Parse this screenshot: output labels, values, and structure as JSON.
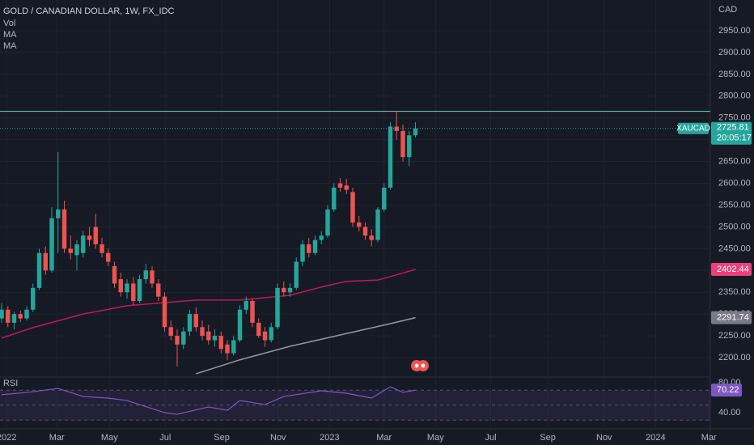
{
  "chart_data": {
    "type": "candlestick",
    "title": "GOLD / CANADIAN DOLLAR, 1W, FX_IDC",
    "indicators": [
      "Vol",
      "MA",
      "MA"
    ],
    "currency": "CAD",
    "symbol_tag": "XAUCAD",
    "countdown": "20:05:17",
    "up_color": "#26a69a",
    "down_color": "#ef5350",
    "grid": true,
    "horizontal_line": 2765,
    "ylim": [
      2155.5,
      3020.5
    ],
    "yticks": [
      {
        "value": 2200,
        "label": "2200.00"
      },
      {
        "value": 2250,
        "label": "2250.00"
      },
      {
        "value": 2300,
        "label": "2300.00"
      },
      {
        "value": 2350,
        "label": "2350.00"
      },
      {
        "value": 2400,
        "label": "2400.00"
      },
      {
        "value": 2450,
        "label": "2450.00"
      },
      {
        "value": 2500,
        "label": "2500.00"
      },
      {
        "value": 2550,
        "label": "2550.00"
      },
      {
        "value": 2600,
        "label": "2600.00"
      },
      {
        "value": 2650,
        "label": "2650.00"
      },
      {
        "value": 2700,
        "label": "2700.00"
      },
      {
        "value": 2750,
        "label": "2750.00"
      },
      {
        "value": 2800,
        "label": "2800.00"
      },
      {
        "value": 2850,
        "label": "2850.00"
      },
      {
        "value": 2900,
        "label": "2900.00"
      },
      {
        "value": 2950,
        "label": "2950.00"
      }
    ],
    "xlim": [
      -0.26,
      113.03
    ],
    "xticks": [
      {
        "value": 0.8,
        "label": "2022"
      },
      {
        "value": 8.8,
        "label": "Mar"
      },
      {
        "value": 17.2,
        "label": "May"
      },
      {
        "value": 26.1,
        "label": "Jul"
      },
      {
        "value": 35.1,
        "label": "Sep"
      },
      {
        "value": 44.1,
        "label": "Nov"
      },
      {
        "value": 52.3,
        "label": "2023"
      },
      {
        "value": 61,
        "label": "Mar"
      },
      {
        "value": 69.2,
        "label": "May"
      },
      {
        "value": 78,
        "label": "Jul"
      },
      {
        "value": 87.1,
        "label": "Sep"
      },
      {
        "value": 96.1,
        "label": "Nov"
      },
      {
        "value": 104.3,
        "label": "2024"
      },
      {
        "value": 112.8,
        "label": "Mar"
      }
    ],
    "candles": [
      [
        2290,
        2325,
        2280,
        2310
      ],
      [
        2310,
        2318,
        2270,
        2280
      ],
      [
        2280,
        2305,
        2265,
        2300
      ],
      [
        2300,
        2308,
        2282,
        2290
      ],
      [
        2290,
        2318,
        2285,
        2310
      ],
      [
        2310,
        2370,
        2305,
        2360
      ],
      [
        2360,
        2450,
        2355,
        2440
      ],
      [
        2440,
        2455,
        2390,
        2400
      ],
      [
        2400,
        2545,
        2395,
        2520
      ],
      [
        2520,
        2672,
        2440,
        2540
      ],
      [
        2540,
        2560,
        2440,
        2450
      ],
      [
        2450,
        2480,
        2425,
        2440
      ],
      [
        2435,
        2470,
        2400,
        2460
      ],
      [
        2440,
        2490,
        2430,
        2480
      ],
      [
        2480,
        2500,
        2455,
        2470
      ],
      [
        2500,
        2530,
        2450,
        2460
      ],
      [
        2460,
        2475,
        2430,
        2440
      ],
      [
        2440,
        2450,
        2410,
        2420
      ],
      [
        2410,
        2420,
        2360,
        2370
      ],
      [
        2380,
        2395,
        2340,
        2350
      ],
      [
        2350,
        2380,
        2335,
        2370
      ],
      [
        2370,
        2385,
        2320,
        2330
      ],
      [
        2330,
        2390,
        2325,
        2380
      ],
      [
        2380,
        2415,
        2370,
        2400
      ],
      [
        2400,
        2410,
        2360,
        2370
      ],
      [
        2370,
        2380,
        2330,
        2340
      ],
      [
        2340,
        2350,
        2260,
        2270
      ],
      [
        2270,
        2285,
        2240,
        2250
      ],
      [
        2250,
        2265,
        2180,
        2230
      ],
      [
        2230,
        2270,
        2220,
        2260
      ],
      [
        2260,
        2310,
        2250,
        2300
      ],
      [
        2300,
        2315,
        2260,
        2270
      ],
      [
        2270,
        2285,
        2240,
        2250
      ],
      [
        2260,
        2275,
        2230,
        2240
      ],
      [
        2240,
        2265,
        2225,
        2250
      ],
      [
        2250,
        2260,
        2210,
        2220
      ],
      [
        2230,
        2240,
        2195,
        2210
      ],
      [
        2210,
        2250,
        2205,
        2240
      ],
      [
        2240,
        2320,
        2235,
        2310
      ],
      [
        2310,
        2340,
        2300,
        2330
      ],
      [
        2330,
        2335,
        2270,
        2280
      ],
      [
        2280,
        2290,
        2245,
        2250
      ],
      [
        2260,
        2270,
        2225,
        2240
      ],
      [
        2240,
        2280,
        2235,
        2270
      ],
      [
        2270,
        2370,
        2265,
        2360
      ],
      [
        2360,
        2375,
        2340,
        2350
      ],
      [
        2350,
        2370,
        2340,
        2360
      ],
      [
        2360,
        2430,
        2355,
        2420
      ],
      [
        2420,
        2470,
        2410,
        2460
      ],
      [
        2460,
        2475,
        2430,
        2440
      ],
      [
        2440,
        2480,
        2435,
        2470
      ],
      [
        2470,
        2490,
        2460,
        2480
      ],
      [
        2480,
        2550,
        2475,
        2540
      ],
      [
        2540,
        2600,
        2535,
        2590
      ],
      [
        2600,
        2612,
        2580,
        2590
      ],
      [
        2595,
        2610,
        2575,
        2585
      ],
      [
        2580,
        2590,
        2500,
        2510
      ],
      [
        2510,
        2525,
        2490,
        2500
      ],
      [
        2500,
        2510,
        2470,
        2480
      ],
      [
        2480,
        2495,
        2455,
        2470
      ],
      [
        2470,
        2545,
        2465,
        2540
      ],
      [
        2540,
        2600,
        2535,
        2590
      ],
      [
        2590,
        2740,
        2585,
        2730
      ],
      [
        2730,
        2765,
        2700,
        2720
      ],
      [
        2720,
        2735,
        2650,
        2660
      ],
      [
        2660,
        2720,
        2640,
        2710
      ],
      [
        2710,
        2740,
        2705,
        2725.81
      ]
    ],
    "series": [
      {
        "name": "MA",
        "color": "#c2185b",
        "x": [
          0,
          5,
          13,
          20,
          31,
          38,
          46,
          51,
          55,
          60,
          63,
          66
        ],
        "values": [
          2245,
          2269,
          2300,
          2319,
          2332,
          2332,
          2343,
          2362,
          2375,
          2378,
          2390,
          2402.44
        ]
      },
      {
        "name": "MA",
        "color": "#9598a1",
        "x": [
          31,
          38,
          46,
          54,
          62,
          66
        ],
        "values": [
          2163,
          2195,
          2226,
          2252,
          2278,
          2291.74
        ]
      }
    ],
    "rsi": {
      "name": "RSI",
      "color": "#7e57c2",
      "ylim": [
        18.4,
        87.6
      ],
      "yticks": [
        {
          "value": 80,
          "label": "80.00"
        },
        {
          "value": 40,
          "label": "40.00"
        }
      ],
      "levels": [
        70,
        50,
        30
      ],
      "x": [
        0,
        4,
        9,
        13,
        17,
        20,
        26,
        28,
        33,
        36,
        38,
        42,
        45,
        51,
        55,
        59,
        62,
        64,
        66
      ],
      "values": [
        64,
        67,
        72.4,
        61.6,
        59.5,
        56.2,
        40,
        37.8,
        47.6,
        43.2,
        56.2,
        50.8,
        61.6,
        69.2,
        66,
        59.5,
        74.6,
        67,
        70.22
      ]
    }
  }
}
